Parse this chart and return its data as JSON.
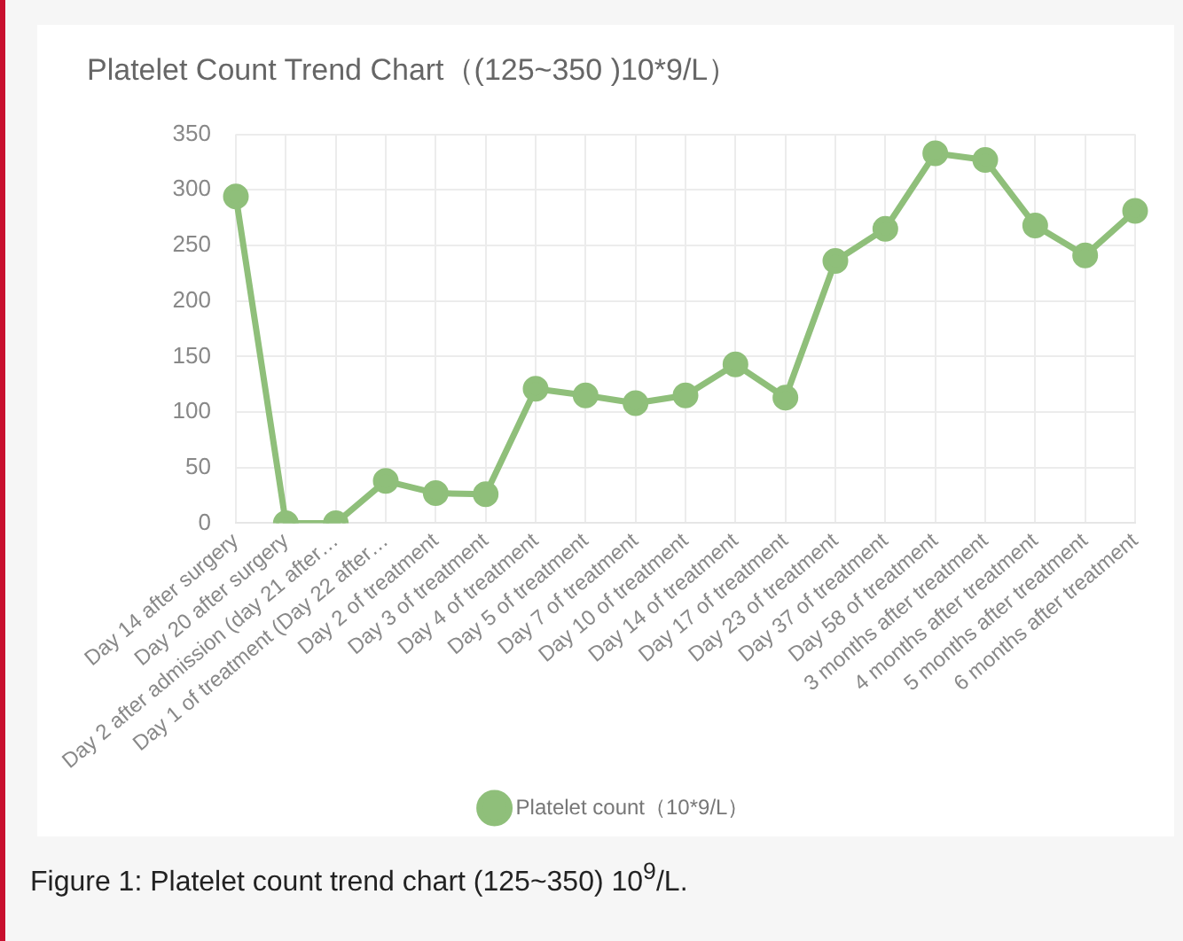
{
  "chart_data": {
    "type": "line",
    "title": "Platelet Count Trend Chart（(125~350 )10*9/L）",
    "categories": [
      "Day 14 after surgery",
      "Day 20 after surgery",
      "Day 2 after admission (day 21 after…",
      "Day 1 of treatment (Day 22 after…",
      "Day 2 of treatment",
      "Day 3 of treatment",
      "Day 4 of treatment",
      "Day 5 of treatment",
      "Day 7 of treatment",
      "Day 10 of treatment",
      "Day 14 of treatment",
      "Day 17 of treatment",
      "Day 23 of treatment",
      "Day 37 of treatment",
      "Day 58 of treatment",
      "3 months after treatment",
      "4 months after treatment",
      "5 months after treatment",
      "6 months after treatment"
    ],
    "series": [
      {
        "name": "Platelet count（10*9/L）",
        "color": "#8fbf7a",
        "values": [
          294,
          0,
          0,
          38,
          27,
          26,
          121,
          115,
          108,
          115,
          143,
          113,
          236,
          265,
          333,
          327,
          268,
          241,
          281
        ]
      }
    ],
    "ylim": [
      0,
      350
    ],
    "yticks": [
      0,
      50,
      100,
      150,
      200,
      250,
      300,
      350
    ],
    "grid": true,
    "legend": "bottom",
    "marker": "circle",
    "line_style": "solid",
    "annotations": [
      "Figure 1: Platelet count trend chart (125~350) 10$^{9}$/L."
    ]
  }
}
